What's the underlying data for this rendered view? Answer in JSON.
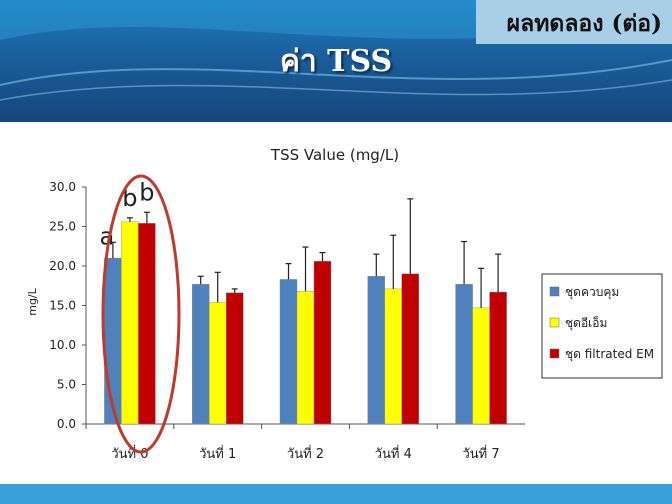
{
  "slide": {
    "tag": "ผลทดลอง (ต่อ)",
    "title": "ค่า TSS"
  },
  "colors": {
    "series": [
      "#4f81bd",
      "#ffff00",
      "#c00000"
    ],
    "circle": "#c00000",
    "header": "#1a5f9c"
  },
  "chart_data": {
    "type": "bar",
    "title": "TSS Value (mg/L)",
    "xlabel": "",
    "ylabel": "mg/L",
    "ylim": [
      0,
      30
    ],
    "yticks": [
      "0.0",
      "5.0",
      "10.0",
      "15.0",
      "20.0",
      "25.0",
      "30.0"
    ],
    "grid": false,
    "legend": "right",
    "categories": [
      "วันที่ 0",
      "วันที่ 1",
      "วันที่ 2",
      "วันที่ 4",
      "วันที่ 7"
    ],
    "series": [
      {
        "name": "ชุดควบคุม",
        "values": [
          21.0,
          17.7,
          18.3,
          18.7,
          17.7
        ],
        "error": [
          2.0,
          1.0,
          2.0,
          2.8,
          5.4
        ]
      },
      {
        "name": "ชุดอีเอ็ม",
        "values": [
          25.6,
          15.4,
          16.8,
          17.1,
          14.7
        ],
        "error": [
          0.5,
          3.8,
          5.6,
          6.8,
          5.0
        ]
      },
      {
        "name": "ชุด filtrated EM",
        "values": [
          25.4,
          16.6,
          20.6,
          19.0,
          16.7
        ],
        "error": [
          1.4,
          0.5,
          1.1,
          9.5,
          4.8
        ]
      }
    ],
    "annotations": [
      {
        "text": "a",
        "category": 0,
        "series": 0
      },
      {
        "text": "b",
        "category": 0,
        "series": 1
      },
      {
        "text": "b",
        "category": 0,
        "series": 2
      }
    ]
  }
}
